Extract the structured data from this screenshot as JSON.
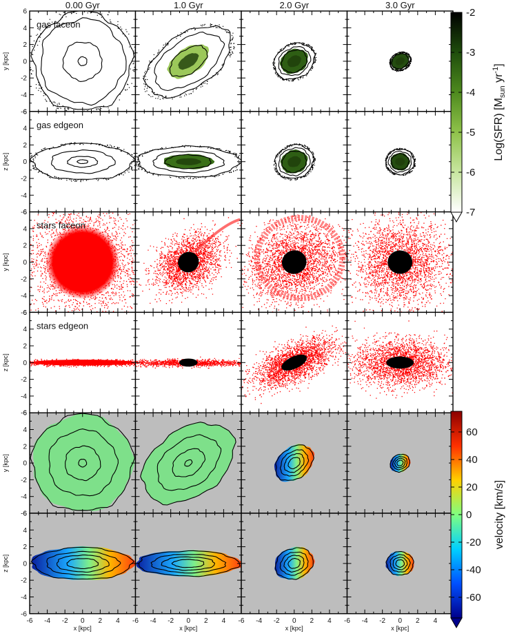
{
  "chart_data": {
    "type": "image-grid",
    "columns": [
      "0.00 Gyr",
      "1.0 Gyr",
      "2.0 Gyr",
      "3.0 Gyr"
    ],
    "rows": [
      {
        "label": "gas faceon",
        "ylabel": "y [kpc]",
        "kind": "sfr"
      },
      {
        "label": "gas edgeon",
        "ylabel": "z [kpc]",
        "kind": "sfr"
      },
      {
        "label": "stars faceon",
        "ylabel": "y [kpc]",
        "kind": "stars"
      },
      {
        "label": "stars edgeon",
        "ylabel": "z [kpc]",
        "kind": "stars"
      },
      {
        "label": "",
        "ylabel": "y [kpc]",
        "kind": "velocity"
      },
      {
        "label": "",
        "ylabel": "z [kpc]",
        "kind": "velocity"
      }
    ],
    "xlabel": "x [kpc]",
    "xlim": [
      -6,
      6
    ],
    "ylim": [
      -6,
      6
    ],
    "x_ticks": [
      "-6",
      "-4",
      "-2",
      "0",
      "2",
      "4"
    ],
    "y_ticks": [
      "6",
      "4",
      "2",
      "0",
      "-2",
      "-4",
      "-6"
    ],
    "colorbars": [
      {
        "name": "sfr",
        "label": "Log(SFR) [M",
        "label_sub": "sun",
        "label_mid": " yr",
        "label_sup": "-1",
        "label_end": "]",
        "ticks": [
          "-2",
          "-3",
          "-4",
          "-5",
          "-6",
          "-7"
        ],
        "range": [
          -7,
          -2
        ],
        "colors": [
          "#ffffff",
          "#c8e6a0",
          "#8fc24a",
          "#4e8a1e",
          "#1f4d0c",
          "#000000"
        ]
      },
      {
        "name": "velocity",
        "label": "velocity [km/s]",
        "ticks": [
          "60",
          "40",
          "20",
          "0",
          "-20",
          "-40",
          "-60"
        ],
        "range": [
          -75,
          75
        ],
        "colors": [
          "#00008b",
          "#0050ff",
          "#00d0ff",
          "#80ff80",
          "#ffd000",
          "#ff3000",
          "#8b0000"
        ]
      }
    ],
    "panels": {
      "sfr": [
        {
          "col": 0,
          "row": 0,
          "contours": [
            5.6,
            4.8,
            2.2,
            0.5
          ],
          "tilt": 0,
          "ratio": 1.0,
          "fill_r": 0,
          "fill": "#5c9a2a"
        },
        {
          "col": 1,
          "row": 0,
          "contours": [
            5.5,
            4.4,
            2.4
          ],
          "tilt": 35,
          "ratio": 0.55,
          "fill_r": 2.4,
          "fill": "#9cc85a"
        },
        {
          "col": 2,
          "row": 0,
          "contours": [
            2.4,
            1.9,
            1.5
          ],
          "tilt": 30,
          "ratio": 0.8,
          "fill_r": 1.5,
          "fill": "#2e5e14"
        },
        {
          "col": 3,
          "row": 0,
          "contours": [
            1.2,
            1.0
          ],
          "tilt": 30,
          "ratio": 0.8,
          "fill_r": 1.0,
          "fill": "#244d10"
        },
        {
          "col": 0,
          "row": 1,
          "contours": [
            5.7,
            3.6,
            1.7,
            0.6
          ],
          "tilt": 0,
          "ratio": 0.36,
          "fill_r": 0,
          "fill": "#5c9a2a"
        },
        {
          "col": 1,
          "row": 1,
          "contours": [
            5.8,
            4.0,
            2.6
          ],
          "tilt": 0,
          "ratio": 0.3,
          "fill_r": 2.6,
          "fill": "#3a7018"
        },
        {
          "col": 2,
          "row": 1,
          "contours": [
            2.2,
            1.8,
            1.4
          ],
          "tilt": 20,
          "ratio": 0.85,
          "fill_r": 1.4,
          "fill": "#2e5e14"
        },
        {
          "col": 3,
          "row": 1,
          "contours": [
            1.6,
            1.3,
            1.0
          ],
          "tilt": 0,
          "ratio": 0.9,
          "fill_r": 1.0,
          "fill": "#244d10"
        }
      ]
    }
  }
}
